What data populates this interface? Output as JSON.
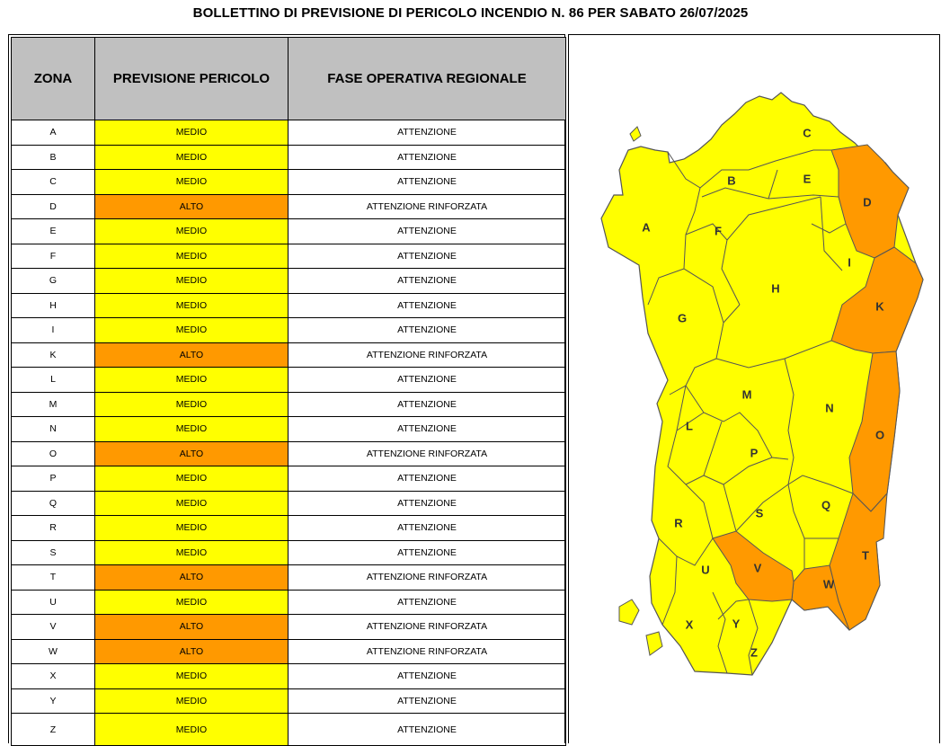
{
  "title": "BOLLETTINO DI PREVISIONE DI PERICOLO INCENDIO N. 86 PER SABATO 26/07/2025",
  "headers": {
    "zona": "ZONA",
    "previsione": "PREVISIONE PERICOLO",
    "fase": "FASE OPERATIVA REGIONALE"
  },
  "colors": {
    "medio": "#ffff00",
    "alto": "#ff9900",
    "header_bg": "#c0c0c0"
  },
  "rows": [
    {
      "zona": "A",
      "previsione": "MEDIO",
      "fase": "ATTENZIONE"
    },
    {
      "zona": "B",
      "previsione": "MEDIO",
      "fase": "ATTENZIONE"
    },
    {
      "zona": "C",
      "previsione": "MEDIO",
      "fase": "ATTENZIONE"
    },
    {
      "zona": "D",
      "previsione": "ALTO",
      "fase": "ATTENZIONE RINFORZATA"
    },
    {
      "zona": "E",
      "previsione": "MEDIO",
      "fase": "ATTENZIONE"
    },
    {
      "zona": "F",
      "previsione": "MEDIO",
      "fase": "ATTENZIONE"
    },
    {
      "zona": "G",
      "previsione": "MEDIO",
      "fase": "ATTENZIONE"
    },
    {
      "zona": "H",
      "previsione": "MEDIO",
      "fase": "ATTENZIONE"
    },
    {
      "zona": "I",
      "previsione": "MEDIO",
      "fase": "ATTENZIONE"
    },
    {
      "zona": "K",
      "previsione": "ALTO",
      "fase": "ATTENZIONE RINFORZATA"
    },
    {
      "zona": "L",
      "previsione": "MEDIO",
      "fase": "ATTENZIONE"
    },
    {
      "zona": "M",
      "previsione": "MEDIO",
      "fase": "ATTENZIONE"
    },
    {
      "zona": "N",
      "previsione": "MEDIO",
      "fase": "ATTENZIONE"
    },
    {
      "zona": "O",
      "previsione": "ALTO",
      "fase": "ATTENZIONE RINFORZATA"
    },
    {
      "zona": "P",
      "previsione": "MEDIO",
      "fase": "ATTENZIONE"
    },
    {
      "zona": "Q",
      "previsione": "MEDIO",
      "fase": "ATTENZIONE"
    },
    {
      "zona": "R",
      "previsione": "MEDIO",
      "fase": "ATTENZIONE"
    },
    {
      "zona": "S",
      "previsione": "MEDIO",
      "fase": "ATTENZIONE"
    },
    {
      "zona": "T",
      "previsione": "ALTO",
      "fase": "ATTENZIONE RINFORZATA"
    },
    {
      "zona": "U",
      "previsione": "MEDIO",
      "fase": "ATTENZIONE"
    },
    {
      "zona": "V",
      "previsione": "ALTO",
      "fase": "ATTENZIONE RINFORZATA"
    },
    {
      "zona": "W",
      "previsione": "ALTO",
      "fase": "ATTENZIONE RINFORZATA"
    },
    {
      "zona": "X",
      "previsione": "MEDIO",
      "fase": "ATTENZIONE"
    },
    {
      "zona": "Y",
      "previsione": "MEDIO",
      "fase": "ATTENZIONE"
    },
    {
      "zona": "Z",
      "previsione": "MEDIO",
      "fase": "ATTENZIONE"
    }
  ],
  "map": {
    "labels": [
      "A",
      "B",
      "C",
      "D",
      "E",
      "F",
      "G",
      "H",
      "I",
      "K",
      "L",
      "M",
      "N",
      "O",
      "P",
      "Q",
      "R",
      "S",
      "T",
      "U",
      "V",
      "W",
      "X",
      "Y",
      "Z"
    ]
  }
}
